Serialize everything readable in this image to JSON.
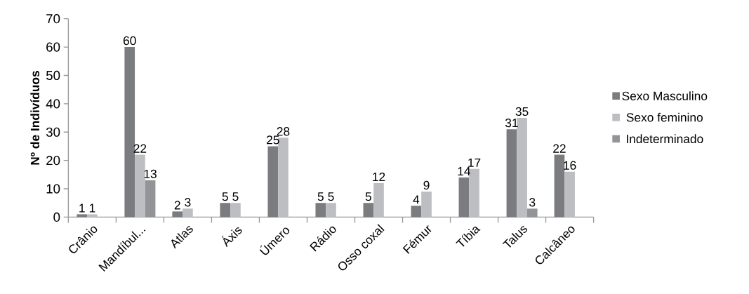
{
  "chart_data": {
    "type": "bar",
    "ylabel": "Nº de Indivíduos",
    "categories": [
      "Crânio",
      "Mandíbul...",
      "Atlas",
      "Áxis",
      "Úmero",
      "Rádio",
      "Osso coxal",
      "Fémur",
      "Tíbia",
      "Talus",
      "Calcâneo"
    ],
    "series": [
      {
        "name": "Sexo Masculino",
        "color": "#7b7c80",
        "values": [
          1,
          60,
          2,
          5,
          25,
          5,
          5,
          4,
          14,
          31,
          22
        ]
      },
      {
        "name": "Sexo feminino",
        "color": "#bdbec2",
        "values": [
          1,
          22,
          3,
          5,
          28,
          5,
          12,
          9,
          17,
          35,
          16
        ]
      },
      {
        "name": "Indeterminado",
        "color": "#939498",
        "values": [
          null,
          13,
          null,
          null,
          null,
          null,
          null,
          null,
          null,
          3,
          null
        ]
      }
    ],
    "ylim": [
      0,
      70
    ],
    "yticks": [
      0,
      10,
      20,
      30,
      40,
      50,
      60,
      70
    ],
    "data_labels": true,
    "legend": "right"
  }
}
